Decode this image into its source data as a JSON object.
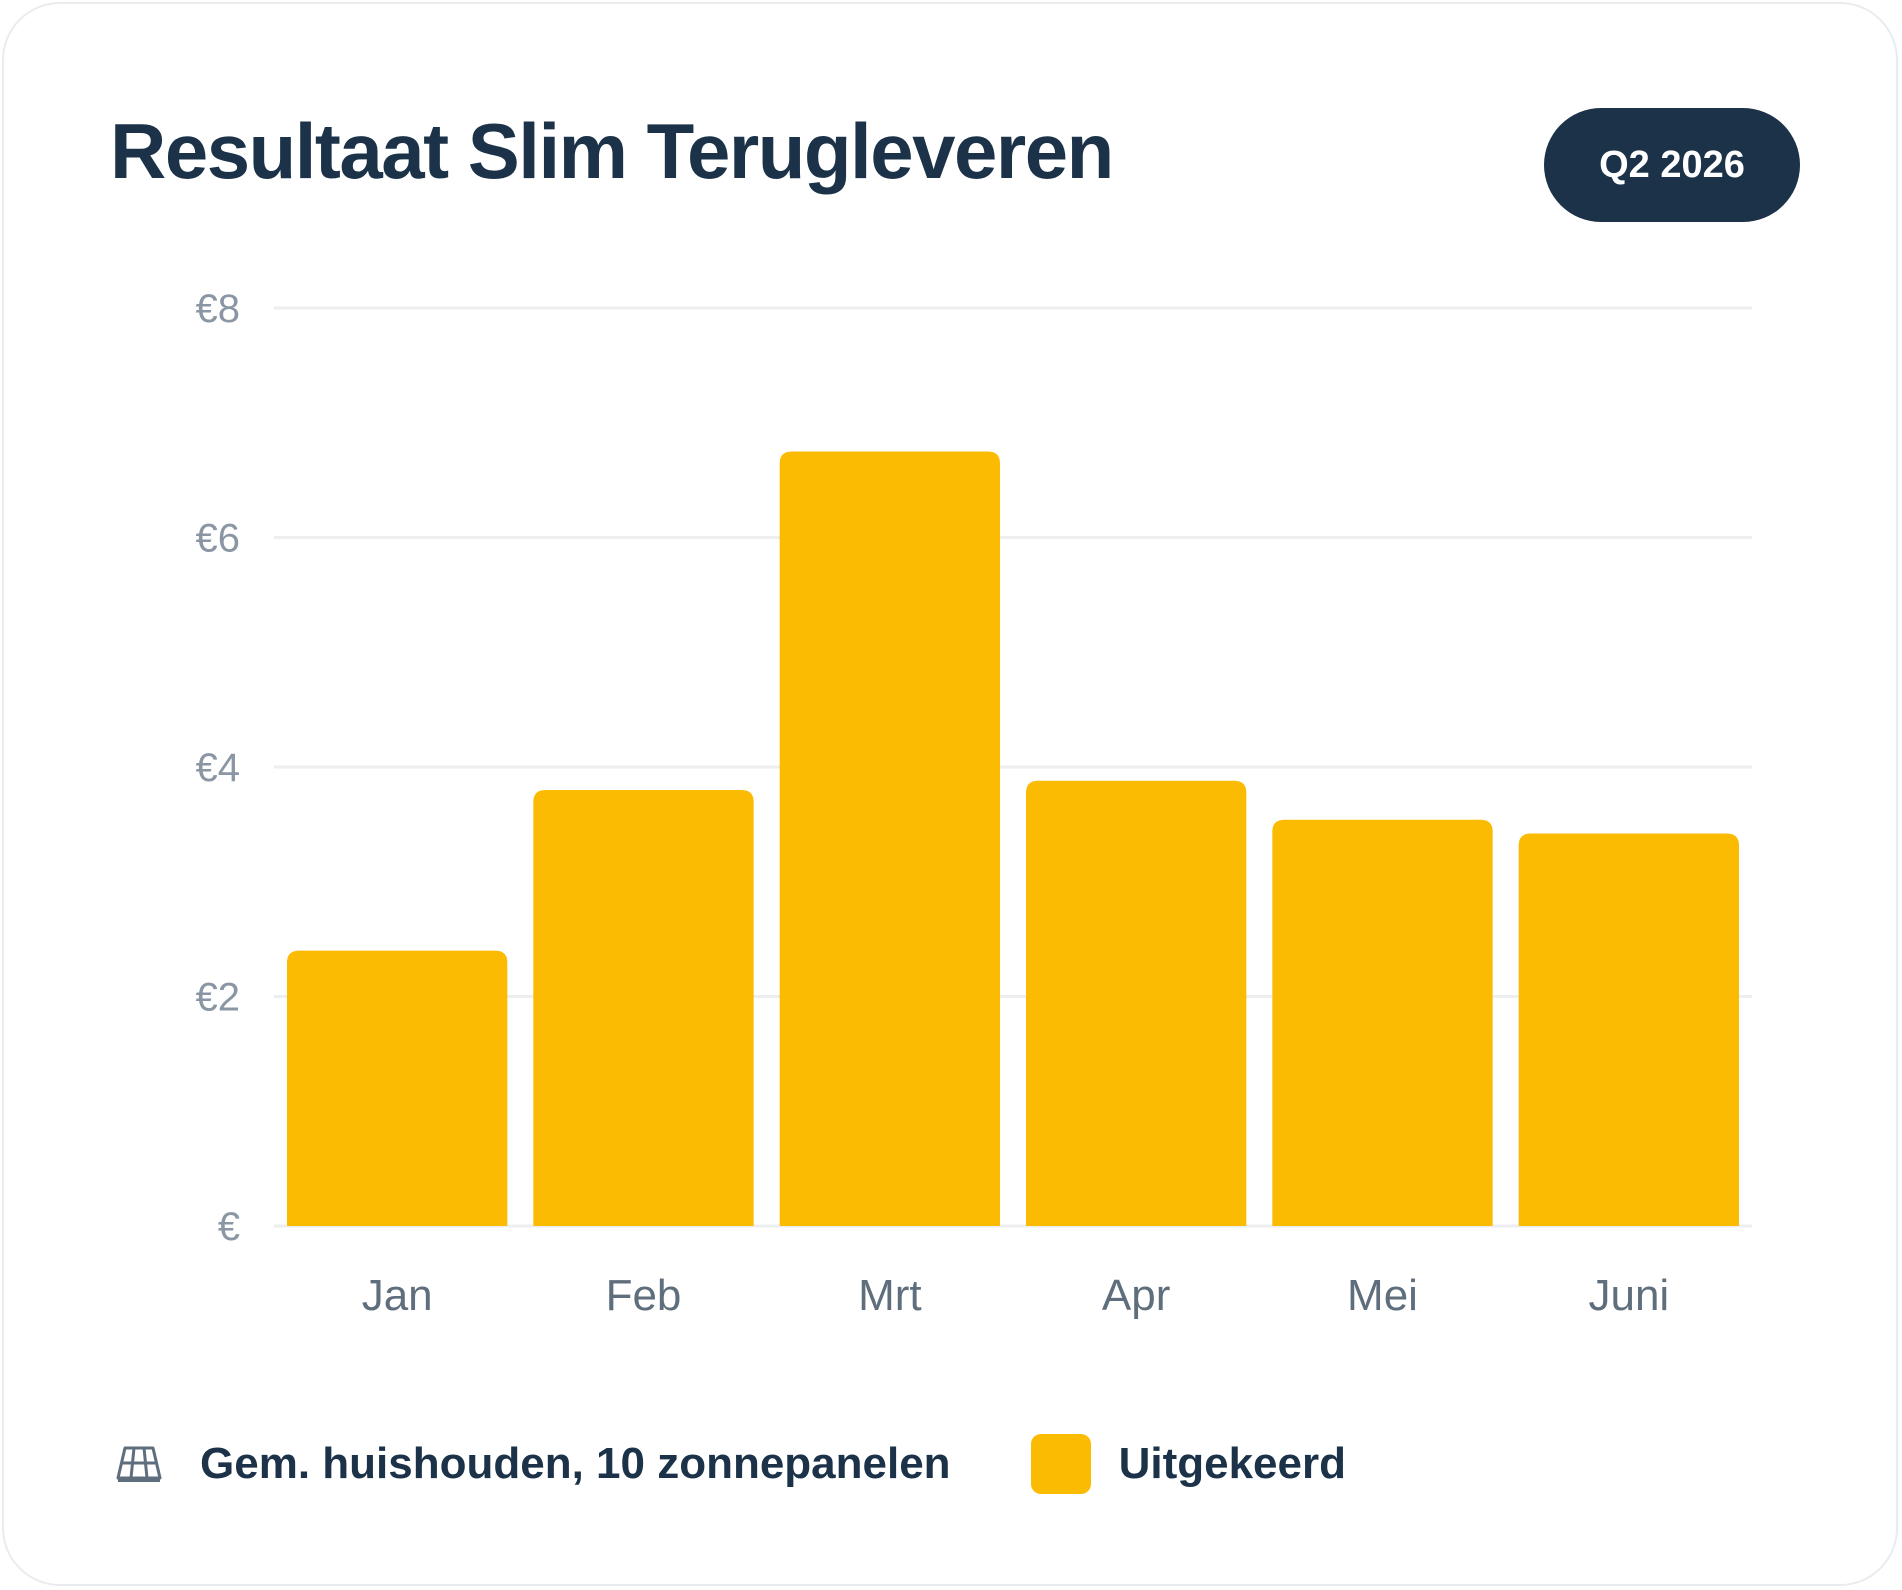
{
  "header": {
    "title": "Resultaat Slim Terugleveren",
    "badge": "Q2 2026"
  },
  "legend": {
    "basis_label": "Gem. huishouden, 10 zonnepanelen",
    "basis_icon": "solar-panel-icon",
    "series_label": "Uitgekeerd"
  },
  "colors": {
    "bar": "#fbbb03",
    "title": "#1b3249",
    "grid": "#eceef0",
    "tick": "#8a96a3",
    "category": "#5f6e7c"
  },
  "chart_data": {
    "type": "bar",
    "categories": [
      "Jan",
      "Feb",
      "Mrt",
      "Apr",
      "Mei",
      "Juni"
    ],
    "values": [
      2.4,
      3.8,
      6.75,
      3.88,
      3.54,
      3.42
    ],
    "ylim": [
      0,
      8
    ],
    "yticks": [
      0,
      2,
      4,
      6,
      8
    ],
    "ytick_labels": [
      "€",
      "€2",
      "€4",
      "€6",
      "€8"
    ],
    "grid": true,
    "legend_position": "bottom-left",
    "series": [
      {
        "name": "Uitgekeerd",
        "values": [
          2.4,
          3.8,
          6.75,
          3.88,
          3.54,
          3.42
        ]
      }
    ]
  }
}
